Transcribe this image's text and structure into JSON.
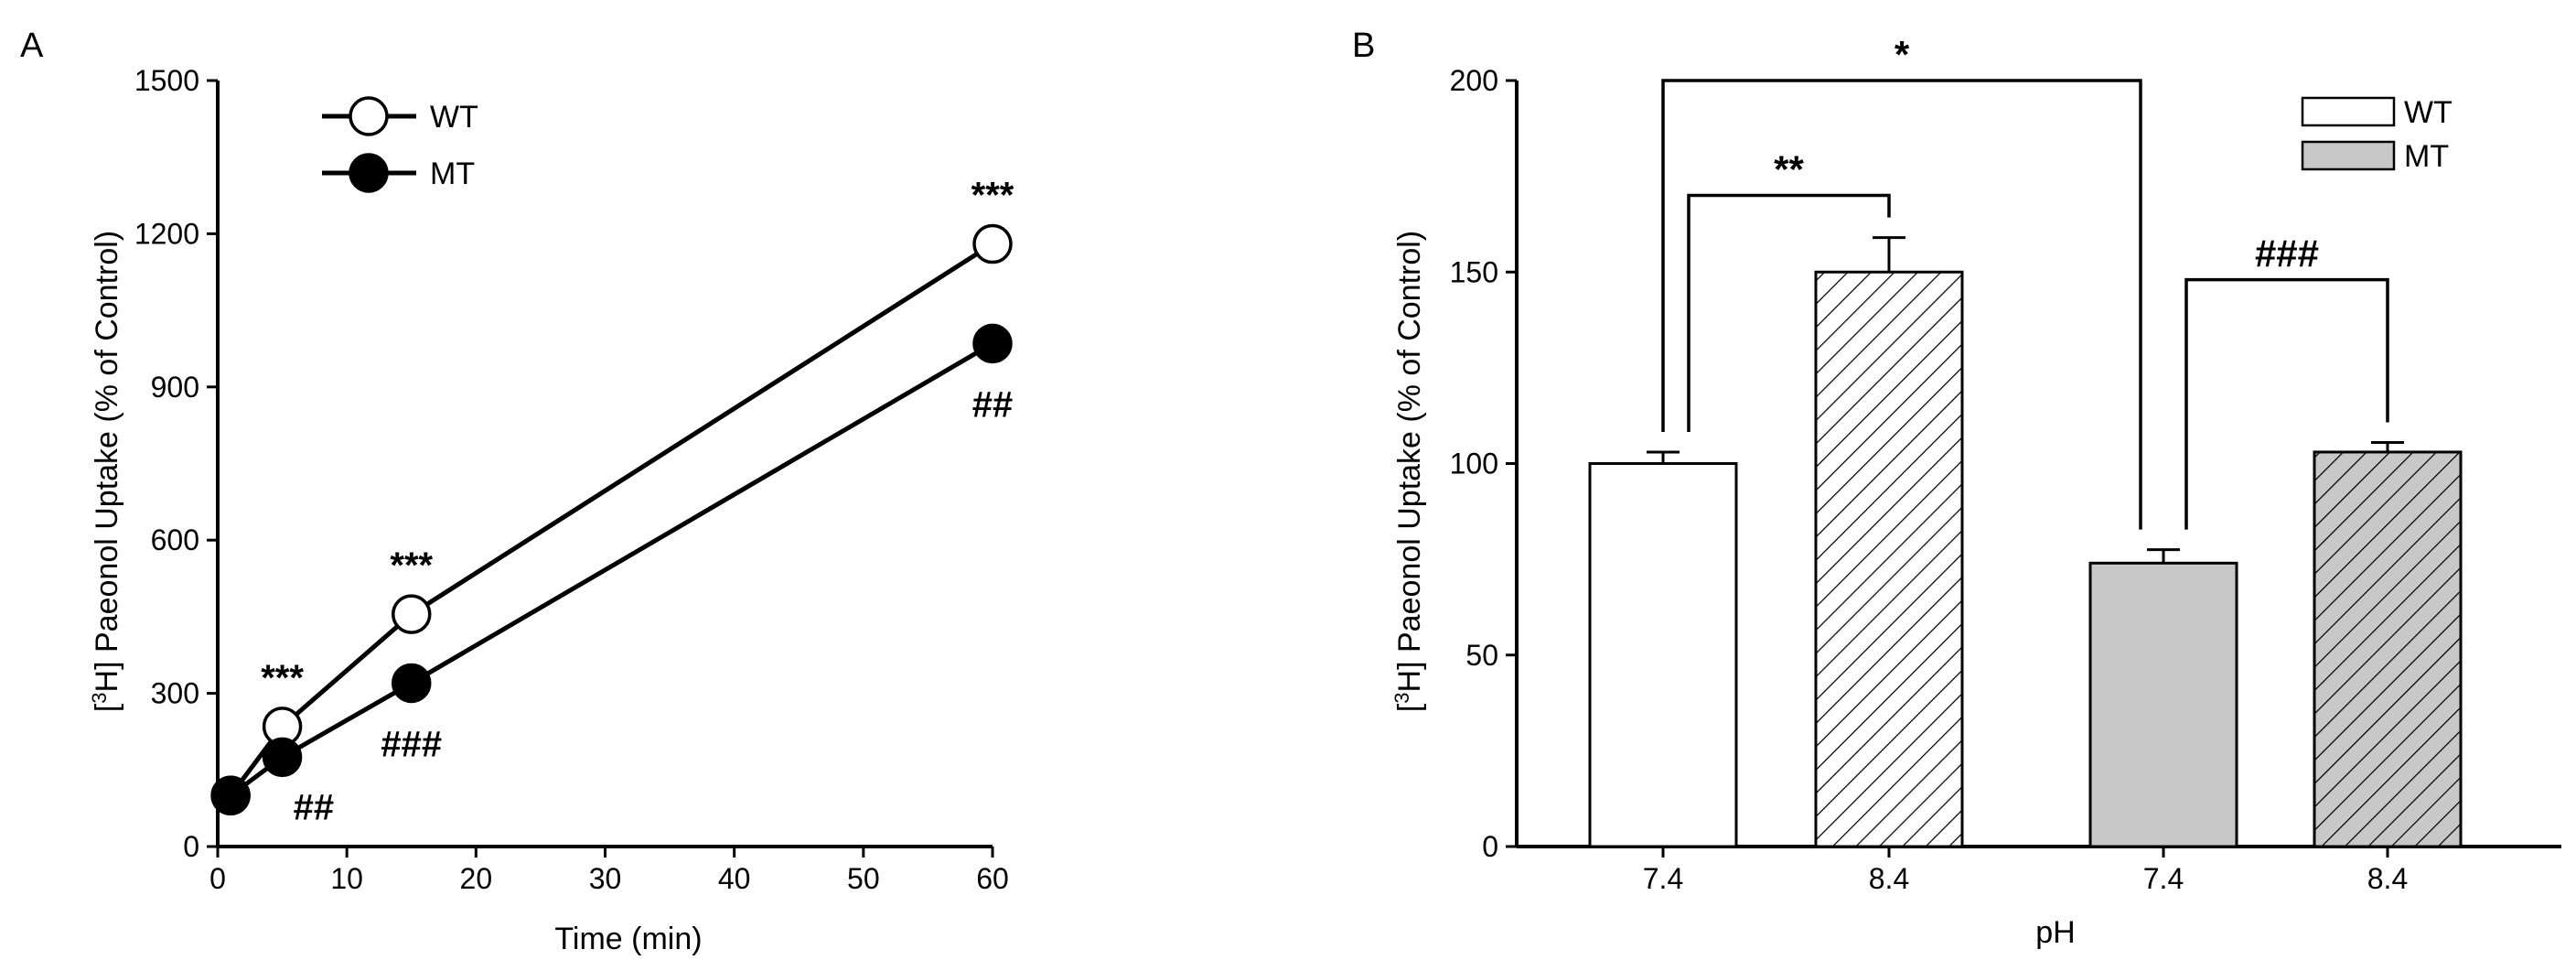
{
  "chart_data": [
    {
      "panel_label": "A",
      "type": "line",
      "xlabel": "Time (min)",
      "ylabel_sup": "3",
      "ylabel_pre": "[",
      "ylabel_post": "H] Paeonol Uptake (% of Control)",
      "xlim": [
        0,
        60
      ],
      "ylim": [
        0,
        1500
      ],
      "x_ticks": [
        "0",
        "10",
        "20",
        "30",
        "40",
        "50",
        "60"
      ],
      "y_ticks": [
        "0",
        "300",
        "600",
        "900",
        "1200",
        "1500"
      ],
      "legend_position": "top-left",
      "series": [
        {
          "name": "WT",
          "marker": "open-circle",
          "color": "#ffffff",
          "x": [
            1,
            5,
            15,
            60
          ],
          "y": [
            100,
            235,
            455,
            1180
          ]
        },
        {
          "name": "MT",
          "marker": "filled-circle",
          "color": "#000000",
          "x": [
            1,
            5,
            15,
            60
          ],
          "y": [
            100,
            175,
            320,
            985
          ]
        }
      ],
      "annotations": [
        {
          "text": "***",
          "x": 5,
          "y": 235,
          "placement": "above"
        },
        {
          "text": "***",
          "x": 15,
          "y": 455,
          "placement": "above"
        },
        {
          "text": "***",
          "x": 60,
          "y": 1180,
          "placement": "above"
        },
        {
          "text": "##",
          "x": 5,
          "y": 175,
          "placement": "below-right"
        },
        {
          "text": "###",
          "x": 15,
          "y": 320,
          "placement": "below"
        },
        {
          "text": "##",
          "x": 60,
          "y": 985,
          "placement": "below"
        }
      ]
    },
    {
      "panel_label": "B",
      "type": "bar",
      "xlabel": "pH",
      "ylabel_sup": "3",
      "ylabel_pre": "[",
      "ylabel_post": "H] Paeonol Uptake (% of Control)",
      "ylim": [
        0,
        200
      ],
      "y_ticks": [
        "0",
        "50",
        "100",
        "150",
        "200"
      ],
      "categories": [
        "7.4",
        "8.4",
        "7.4",
        "8.4"
      ],
      "values": [
        100,
        150,
        74,
        103
      ],
      "errors": [
        3,
        9,
        3.5,
        2.5
      ],
      "group": [
        "WT",
        "WT",
        "MT",
        "MT"
      ],
      "fills": [
        "#ffffff",
        "hatch-white",
        "#c8c8c8",
        "hatch-gray"
      ],
      "legend_position": "top-right",
      "legend": [
        {
          "name": "WT",
          "color": "#ffffff"
        },
        {
          "name": "MT",
          "color": "#c8c8c8"
        }
      ],
      "brackets": [
        {
          "text": "*",
          "from": 0,
          "to": 2,
          "level": 200
        },
        {
          "text": "**",
          "from": 0,
          "to": 1,
          "level": 170
        },
        {
          "text": "###",
          "from": 2,
          "to": 3,
          "level": 148
        }
      ]
    }
  ]
}
